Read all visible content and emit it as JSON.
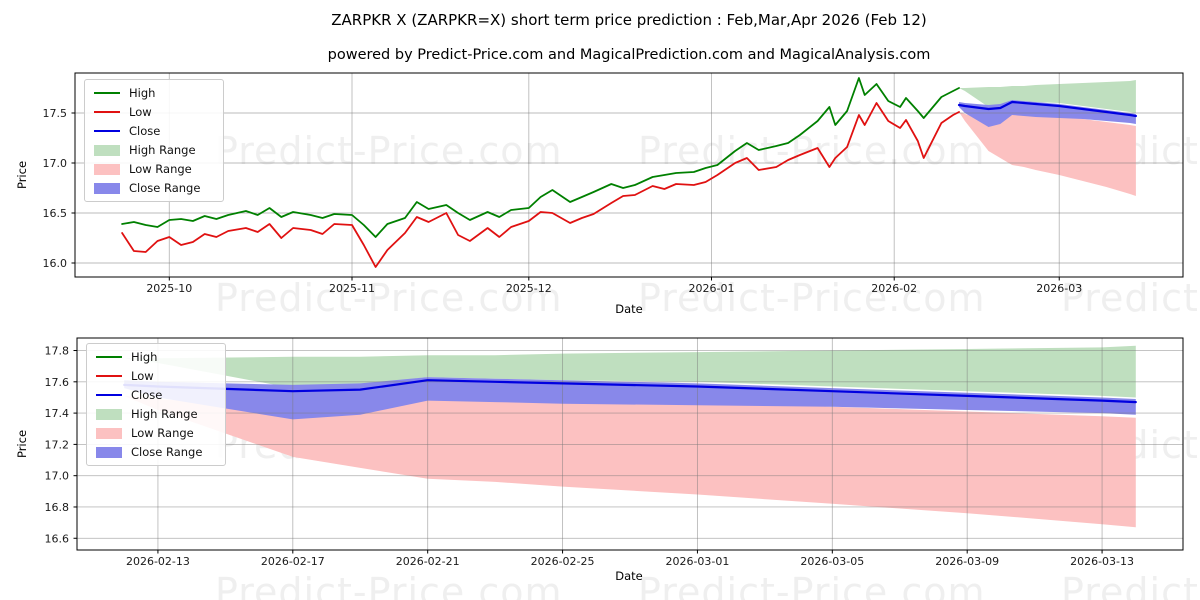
{
  "title": "ZARPKR X (ZARPKR=X) short term price prediction : Feb,Mar,Apr 2026 (Feb 12)",
  "subtitle": "powered by Predict-Price.com and MagicalPrediction.com and MagicalAnalysis.com",
  "watermark_text": "Predict-Price.com",
  "colors": {
    "high_line": "#008000",
    "low_line": "#e01111",
    "close_line": "#0000e0",
    "high_range": "#bfdfbf",
    "low_range": "#fcc1c1",
    "close_range": "#8888ea",
    "grid": "#b3b3b3",
    "spine": "#000000"
  },
  "legend": [
    {
      "label": "High",
      "swatch": "line",
      "color": "high_line"
    },
    {
      "label": "Low",
      "swatch": "line",
      "color": "low_line"
    },
    {
      "label": "Close",
      "swatch": "line",
      "color": "close_line"
    },
    {
      "label": "High Range",
      "swatch": "patch",
      "color": "high_range"
    },
    {
      "label": "Low Range",
      "swatch": "patch",
      "color": "low_range"
    },
    {
      "label": "Close Range",
      "swatch": "patch",
      "color": "close_range"
    }
  ],
  "chart_data": [
    {
      "type": "line",
      "title": "",
      "xlabel": "Date",
      "ylabel": "Price",
      "x_unit": "days since 2025-09-15",
      "xlim": [
        0,
        188
      ],
      "ylim": [
        15.86,
        17.9
      ],
      "grid": true,
      "legend_position": "upper left",
      "xticks": [
        {
          "pos": 16,
          "label": "2025-10"
        },
        {
          "pos": 47,
          "label": "2025-11"
        },
        {
          "pos": 77,
          "label": "2025-12"
        },
        {
          "pos": 108,
          "label": "2026-01"
        },
        {
          "pos": 139,
          "label": "2026-02"
        },
        {
          "pos": 167,
          "label": "2026-03"
        }
      ],
      "yticks": [
        {
          "pos": 16.0,
          "label": "16.0"
        },
        {
          "pos": 16.5,
          "label": "16.5"
        },
        {
          "pos": 17.0,
          "label": "17.0"
        },
        {
          "pos": 17.5,
          "label": "17.5"
        }
      ],
      "series": [
        {
          "name": "High",
          "color": "high_line",
          "width": 1.8,
          "x": [
            8,
            10,
            12,
            14,
            16,
            18,
            20,
            22,
            24,
            26,
            29,
            31,
            33,
            35,
            37,
            40,
            42,
            44,
            47,
            49,
            51,
            53,
            56,
            58,
            60,
            63,
            65,
            67,
            70,
            72,
            74,
            77,
            79,
            81,
            84,
            86,
            88,
            91,
            93,
            95,
            98,
            100,
            102,
            105,
            107,
            109,
            112,
            114,
            116,
            119,
            121,
            123,
            126,
            128,
            129,
            131,
            133,
            134,
            136,
            138,
            140,
            141,
            143,
            144,
            147,
            149,
            150
          ],
          "y": [
            16.39,
            16.41,
            16.38,
            16.36,
            16.43,
            16.44,
            16.42,
            16.47,
            16.44,
            16.48,
            16.52,
            16.48,
            16.55,
            16.46,
            16.51,
            16.48,
            16.45,
            16.49,
            16.48,
            16.38,
            16.26,
            16.39,
            16.45,
            16.61,
            16.54,
            16.58,
            16.5,
            16.43,
            16.51,
            16.46,
            16.53,
            16.55,
            16.66,
            16.73,
            16.61,
            16.66,
            16.71,
            16.79,
            16.75,
            16.78,
            16.86,
            16.88,
            16.9,
            16.91,
            16.95,
            16.98,
            17.12,
            17.2,
            17.13,
            17.17,
            17.2,
            17.28,
            17.42,
            17.56,
            17.38,
            17.52,
            17.85,
            17.68,
            17.79,
            17.62,
            17.56,
            17.65,
            17.52,
            17.45,
            17.66,
            17.72,
            17.75
          ]
        },
        {
          "name": "Low",
          "color": "low_line",
          "width": 1.8,
          "x": [
            8,
            10,
            12,
            14,
            16,
            18,
            20,
            22,
            24,
            26,
            29,
            31,
            33,
            35,
            37,
            40,
            42,
            44,
            47,
            49,
            51,
            53,
            56,
            58,
            60,
            63,
            65,
            67,
            70,
            72,
            74,
            77,
            79,
            81,
            84,
            86,
            88,
            91,
            93,
            95,
            98,
            100,
            102,
            105,
            107,
            109,
            112,
            114,
            116,
            119,
            121,
            123,
            126,
            128,
            129,
            131,
            133,
            134,
            136,
            138,
            140,
            141,
            143,
            144,
            147,
            149,
            150
          ],
          "y": [
            16.3,
            16.12,
            16.11,
            16.22,
            16.26,
            16.18,
            16.21,
            16.29,
            16.26,
            16.32,
            16.35,
            16.31,
            16.39,
            16.25,
            16.35,
            16.33,
            16.29,
            16.39,
            16.38,
            16.18,
            15.96,
            16.13,
            16.3,
            16.46,
            16.41,
            16.5,
            16.28,
            16.22,
            16.35,
            16.26,
            16.36,
            16.42,
            16.51,
            16.5,
            16.4,
            16.45,
            16.49,
            16.6,
            16.67,
            16.68,
            16.77,
            16.74,
            16.79,
            16.78,
            16.81,
            16.88,
            17.0,
            17.05,
            16.93,
            16.96,
            17.03,
            17.08,
            17.15,
            16.96,
            17.05,
            17.16,
            17.48,
            17.38,
            17.6,
            17.42,
            17.35,
            17.43,
            17.22,
            17.05,
            17.4,
            17.48,
            17.51
          ]
        },
        {
          "name": "Close",
          "color": "close_line",
          "width": 2.2,
          "x": [
            150,
            151,
            155,
            157,
            159,
            161,
            163,
            167,
            171,
            175,
            179,
            180
          ],
          "y": [
            17.58,
            17.57,
            17.54,
            17.55,
            17.61,
            17.6,
            17.59,
            17.57,
            17.54,
            17.51,
            17.48,
            17.47
          ]
        }
      ],
      "bands": [
        {
          "name": "High Range",
          "color": "high_range",
          "x": [
            150,
            151,
            155,
            157,
            159,
            161,
            163,
            167,
            171,
            175,
            179,
            180
          ],
          "upper": [
            17.75,
            17.75,
            17.76,
            17.76,
            17.77,
            17.77,
            17.78,
            17.79,
            17.8,
            17.81,
            17.82,
            17.83
          ],
          "lower": [
            17.75,
            17.72,
            17.56,
            17.58,
            17.63,
            17.62,
            17.61,
            17.6,
            17.57,
            17.54,
            17.51,
            17.5
          ]
        },
        {
          "name": "Low Range",
          "color": "low_range",
          "x": [
            150,
            151,
            155,
            157,
            159,
            161,
            163,
            167,
            171,
            175,
            179,
            180
          ],
          "upper": [
            17.51,
            17.49,
            17.43,
            17.46,
            17.52,
            17.51,
            17.5,
            17.47,
            17.44,
            17.41,
            17.38,
            17.37
          ],
          "lower": [
            17.51,
            17.42,
            17.12,
            17.05,
            16.98,
            16.96,
            16.93,
            16.88,
            16.82,
            16.76,
            16.69,
            16.67
          ]
        },
        {
          "name": "Close Range",
          "color": "close_range",
          "x": [
            150,
            151,
            155,
            157,
            159,
            161,
            163,
            167,
            171,
            175,
            179,
            180
          ],
          "upper": [
            17.61,
            17.6,
            17.58,
            17.59,
            17.63,
            17.62,
            17.61,
            17.59,
            17.56,
            17.53,
            17.5,
            17.49
          ],
          "lower": [
            17.56,
            17.5,
            17.36,
            17.39,
            17.48,
            17.47,
            17.46,
            17.45,
            17.44,
            17.42,
            17.4,
            17.39
          ]
        }
      ]
    },
    {
      "type": "line",
      "title": "",
      "xlabel": "Date",
      "ylabel": "Price",
      "x_unit": "days since 2025-09-15",
      "xlim": [
        148.6,
        181.4
      ],
      "ylim": [
        16.525,
        17.88
      ],
      "grid": true,
      "legend_position": "upper left",
      "xticks": [
        {
          "pos": 151,
          "label": "2026-02-13"
        },
        {
          "pos": 155,
          "label": "2026-02-17"
        },
        {
          "pos": 159,
          "label": "2026-02-21"
        },
        {
          "pos": 163,
          "label": "2026-02-25"
        },
        {
          "pos": 167,
          "label": "2026-03-01"
        },
        {
          "pos": 171,
          "label": "2026-03-05"
        },
        {
          "pos": 175,
          "label": "2026-03-09"
        },
        {
          "pos": 179,
          "label": "2026-03-13"
        }
      ],
      "yticks": [
        {
          "pos": 16.6,
          "label": "16.6"
        },
        {
          "pos": 16.8,
          "label": "16.8"
        },
        {
          "pos": 17.0,
          "label": "17.0"
        },
        {
          "pos": 17.2,
          "label": "17.2"
        },
        {
          "pos": 17.4,
          "label": "17.4"
        },
        {
          "pos": 17.6,
          "label": "17.6"
        },
        {
          "pos": 17.8,
          "label": "17.8"
        }
      ],
      "series": [
        {
          "name": "Close",
          "color": "close_line",
          "width": 2.2,
          "x": [
            150,
            151,
            155,
            157,
            159,
            161,
            163,
            167,
            171,
            175,
            179,
            180
          ],
          "y": [
            17.58,
            17.57,
            17.54,
            17.55,
            17.61,
            17.6,
            17.59,
            17.57,
            17.54,
            17.51,
            17.48,
            17.47
          ]
        }
      ],
      "bands": [
        {
          "name": "High Range",
          "color": "high_range",
          "x": [
            150,
            151,
            155,
            157,
            159,
            161,
            163,
            167,
            171,
            175,
            179,
            180
          ],
          "upper": [
            17.75,
            17.75,
            17.76,
            17.76,
            17.77,
            17.77,
            17.78,
            17.79,
            17.8,
            17.81,
            17.82,
            17.83
          ],
          "lower": [
            17.75,
            17.72,
            17.56,
            17.58,
            17.63,
            17.62,
            17.61,
            17.6,
            17.57,
            17.54,
            17.51,
            17.5
          ]
        },
        {
          "name": "Low Range",
          "color": "low_range",
          "x": [
            150,
            151,
            155,
            157,
            159,
            161,
            163,
            167,
            171,
            175,
            179,
            180
          ],
          "upper": [
            17.51,
            17.49,
            17.43,
            17.46,
            17.52,
            17.51,
            17.5,
            17.47,
            17.44,
            17.41,
            17.38,
            17.37
          ],
          "lower": [
            17.51,
            17.42,
            17.12,
            17.05,
            16.98,
            16.96,
            16.93,
            16.88,
            16.82,
            16.76,
            16.69,
            16.67
          ]
        },
        {
          "name": "Close Range",
          "color": "close_range",
          "x": [
            150,
            151,
            155,
            157,
            159,
            161,
            163,
            167,
            171,
            175,
            179,
            180
          ],
          "upper": [
            17.61,
            17.6,
            17.58,
            17.59,
            17.63,
            17.62,
            17.61,
            17.59,
            17.56,
            17.53,
            17.5,
            17.49
          ],
          "lower": [
            17.56,
            17.5,
            17.36,
            17.39,
            17.48,
            17.47,
            17.46,
            17.45,
            17.44,
            17.42,
            17.4,
            17.39
          ]
        }
      ]
    }
  ]
}
